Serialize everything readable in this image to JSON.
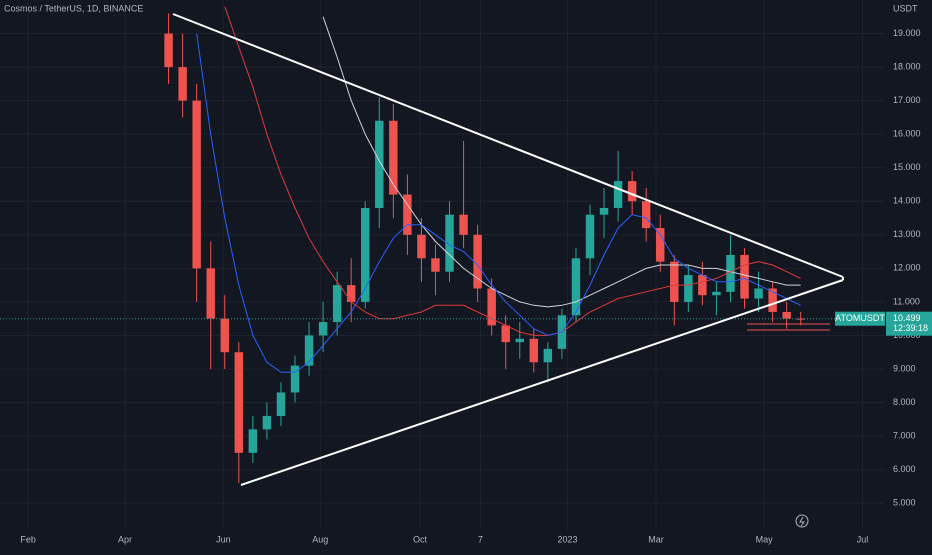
{
  "header": {
    "title": "Cosmos / TetherUS, 1D, BINANCE"
  },
  "chart_data": {
    "type": "candlestick",
    "title": "Cosmos / TetherUS, 1D, BINANCE",
    "y_axis_label": "USDT",
    "up_color": "#26a69a",
    "down_color": "#ef5350",
    "grid": true,
    "xlim": [
      -12,
      51
    ],
    "ylim": [
      4.2,
      20
    ],
    "xticks": [
      {
        "value": -10,
        "label": "Feb"
      },
      {
        "value": -3.1,
        "label": "Apr"
      },
      {
        "value": 3.9,
        "label": "Jun"
      },
      {
        "value": 10.8,
        "label": "Aug"
      },
      {
        "value": 17.9,
        "label": "Oct"
      },
      {
        "value": 22.2,
        "label": "7"
      },
      {
        "value": 28.4,
        "label": "2023"
      },
      {
        "value": 34.7,
        "label": "Mar"
      },
      {
        "value": 42.4,
        "label": "May"
      },
      {
        "value": 49.4,
        "label": "Jul"
      }
    ],
    "yticks": [
      {
        "value": 5,
        "label": "5.000"
      },
      {
        "value": 6,
        "label": "6.000"
      },
      {
        "value": 7,
        "label": "7.000"
      },
      {
        "value": 8,
        "label": "8.000"
      },
      {
        "value": 9,
        "label": "9.000"
      },
      {
        "value": 10,
        "label": "10.000"
      },
      {
        "value": 11,
        "label": "11.000"
      },
      {
        "value": 12,
        "label": "12.000"
      },
      {
        "value": 13,
        "label": "13.000"
      },
      {
        "value": 14,
        "label": "14.000"
      },
      {
        "value": 15,
        "label": "15.000"
      },
      {
        "value": 16,
        "label": "16.000"
      },
      {
        "value": 17,
        "label": "17.000"
      },
      {
        "value": 18,
        "label": "18.000"
      },
      {
        "value": 19,
        "label": "19.000"
      }
    ],
    "x": [
      0,
      1,
      2,
      3,
      4,
      5,
      6,
      7,
      8,
      9,
      10,
      11,
      12,
      13,
      14,
      15,
      16,
      17,
      18,
      19,
      20,
      21,
      22,
      23,
      24,
      25,
      26,
      27,
      28,
      29,
      30,
      31,
      32,
      33,
      34,
      35,
      36,
      37,
      38,
      39,
      40,
      41,
      42,
      43,
      44,
      45
    ],
    "open": [
      19.0,
      18.0,
      17.0,
      12.0,
      10.5,
      9.5,
      6.5,
      7.2,
      7.6,
      8.3,
      9.1,
      10.0,
      10.4,
      11.5,
      11.0,
      13.8,
      16.4,
      14.2,
      13.0,
      12.3,
      11.9,
      13.6,
      13.0,
      11.4,
      10.3,
      9.8,
      9.9,
      9.2,
      9.6,
      10.6,
      12.3,
      13.6,
      13.8,
      14.6,
      14.0,
      13.2,
      12.2,
      11.0,
      11.8,
      11.2,
      11.3,
      12.4,
      11.1,
      11.4,
      10.7,
      10.5
    ],
    "high": [
      19.6,
      19.0,
      17.5,
      12.8,
      11.2,
      9.8,
      7.6,
      8.0,
      8.6,
      9.4,
      10.4,
      11.0,
      11.9,
      12.3,
      14.0,
      17.1,
      16.9,
      14.8,
      13.5,
      12.7,
      14.0,
      15.8,
      13.3,
      11.7,
      10.6,
      10.4,
      10.2,
      9.8,
      10.8,
      12.6,
      13.9,
      14.4,
      15.5,
      14.9,
      14.4,
      13.6,
      12.4,
      12.1,
      12.2,
      11.6,
      13.0,
      12.6,
      11.9,
      11.6,
      11.0,
      10.7
    ],
    "low": [
      17.5,
      16.5,
      11.0,
      9.0,
      9.0,
      5.6,
      6.2,
      6.9,
      7.3,
      8.0,
      8.8,
      9.5,
      10.0,
      10.4,
      10.8,
      13.2,
      13.5,
      12.4,
      11.6,
      11.2,
      11.6,
      12.6,
      11.0,
      10.0,
      9.0,
      9.3,
      8.9,
      8.6,
      9.3,
      10.4,
      11.8,
      12.9,
      13.4,
      13.6,
      12.8,
      11.9,
      10.3,
      10.7,
      10.9,
      10.6,
      11.0,
      10.8,
      10.7,
      10.4,
      10.2,
      10.3
    ],
    "close": [
      18.0,
      17.0,
      12.0,
      10.5,
      9.5,
      6.5,
      7.2,
      7.6,
      8.3,
      9.1,
      10.0,
      10.4,
      11.5,
      11.0,
      13.8,
      16.4,
      14.2,
      13.0,
      12.3,
      11.9,
      13.6,
      13.0,
      11.4,
      10.3,
      9.8,
      9.9,
      9.2,
      9.6,
      10.6,
      12.3,
      13.6,
      13.8,
      14.6,
      14.0,
      13.2,
      12.2,
      11.0,
      11.8,
      11.2,
      11.3,
      12.4,
      11.1,
      11.4,
      10.7,
      10.5,
      10.499
    ],
    "moving_averages": [
      {
        "color": "#d1d4dc",
        "values": [
          null,
          null,
          null,
          null,
          null,
          null,
          null,
          null,
          null,
          null,
          null,
          19.5,
          18.3,
          17.0,
          16.0,
          15.2,
          14.5,
          13.9,
          13.3,
          12.8,
          12.4,
          12.0,
          11.7,
          11.4,
          11.2,
          11.0,
          10.9,
          10.85,
          10.9,
          11.0,
          11.2,
          11.4,
          11.6,
          11.8,
          12.0,
          12.1,
          12.1,
          12.1,
          12.0,
          12.0,
          11.9,
          11.8,
          11.7,
          11.6,
          11.5,
          11.5
        ]
      },
      {
        "color": "#e0393e",
        "values": [
          null,
          null,
          null,
          null,
          19.8,
          18.6,
          17.4,
          16.0,
          14.8,
          13.8,
          12.9,
          12.2,
          11.6,
          11.0,
          10.7,
          10.5,
          10.5,
          10.6,
          10.7,
          10.9,
          10.9,
          10.9,
          10.7,
          10.5,
          10.3,
          10.1,
          10.0,
          10.0,
          10.1,
          10.4,
          10.7,
          10.9,
          11.1,
          11.2,
          11.3,
          11.4,
          11.5,
          11.5,
          11.6,
          11.7,
          11.9,
          12.1,
          12.2,
          12.1,
          11.9,
          11.7
        ]
      },
      {
        "color": "#2962ff",
        "values": [
          null,
          null,
          19.0,
          16.0,
          13.5,
          11.5,
          10.0,
          9.2,
          8.9,
          8.9,
          9.2,
          9.7,
          10.2,
          10.7,
          11.4,
          12.2,
          12.9,
          13.3,
          13.3,
          13.0,
          12.7,
          12.5,
          12.1,
          11.5,
          11.0,
          10.6,
          10.2,
          10.0,
          10.1,
          10.7,
          11.5,
          12.4,
          13.2,
          13.6,
          13.5,
          13.0,
          12.3,
          12.0,
          11.8,
          11.6,
          11.6,
          11.7,
          11.5,
          11.3,
          11.1,
          10.9
        ]
      }
    ],
    "last_price": {
      "symbol": "ATOMUSDT",
      "value": 10.499,
      "countdown": "12:39:18"
    }
  }
}
